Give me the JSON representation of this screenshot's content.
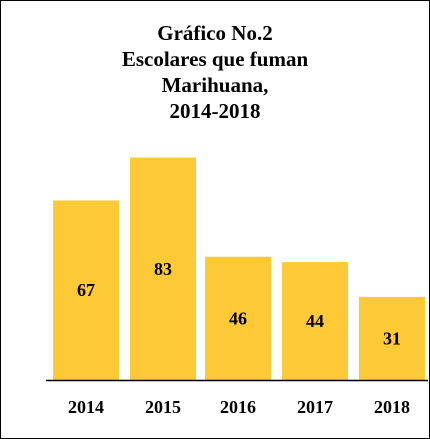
{
  "colors": {
    "bar": "#FDC937",
    "axis": "#000000",
    "background": "#ffffff"
  },
  "chart_data": {
    "type": "bar",
    "title_lines": [
      "Gráfico No.2",
      "Escolares que fuman",
      "Marihuana,",
      "2014-2018"
    ],
    "categories": [
      "2014",
      "2015",
      "2016",
      "2017",
      "2018"
    ],
    "values": [
      67,
      83,
      46,
      44,
      31
    ],
    "data_labels": [
      "67",
      "83",
      "46",
      "44",
      "31"
    ],
    "xlabel": "",
    "ylabel": "",
    "grid": false,
    "legend": "none"
  }
}
